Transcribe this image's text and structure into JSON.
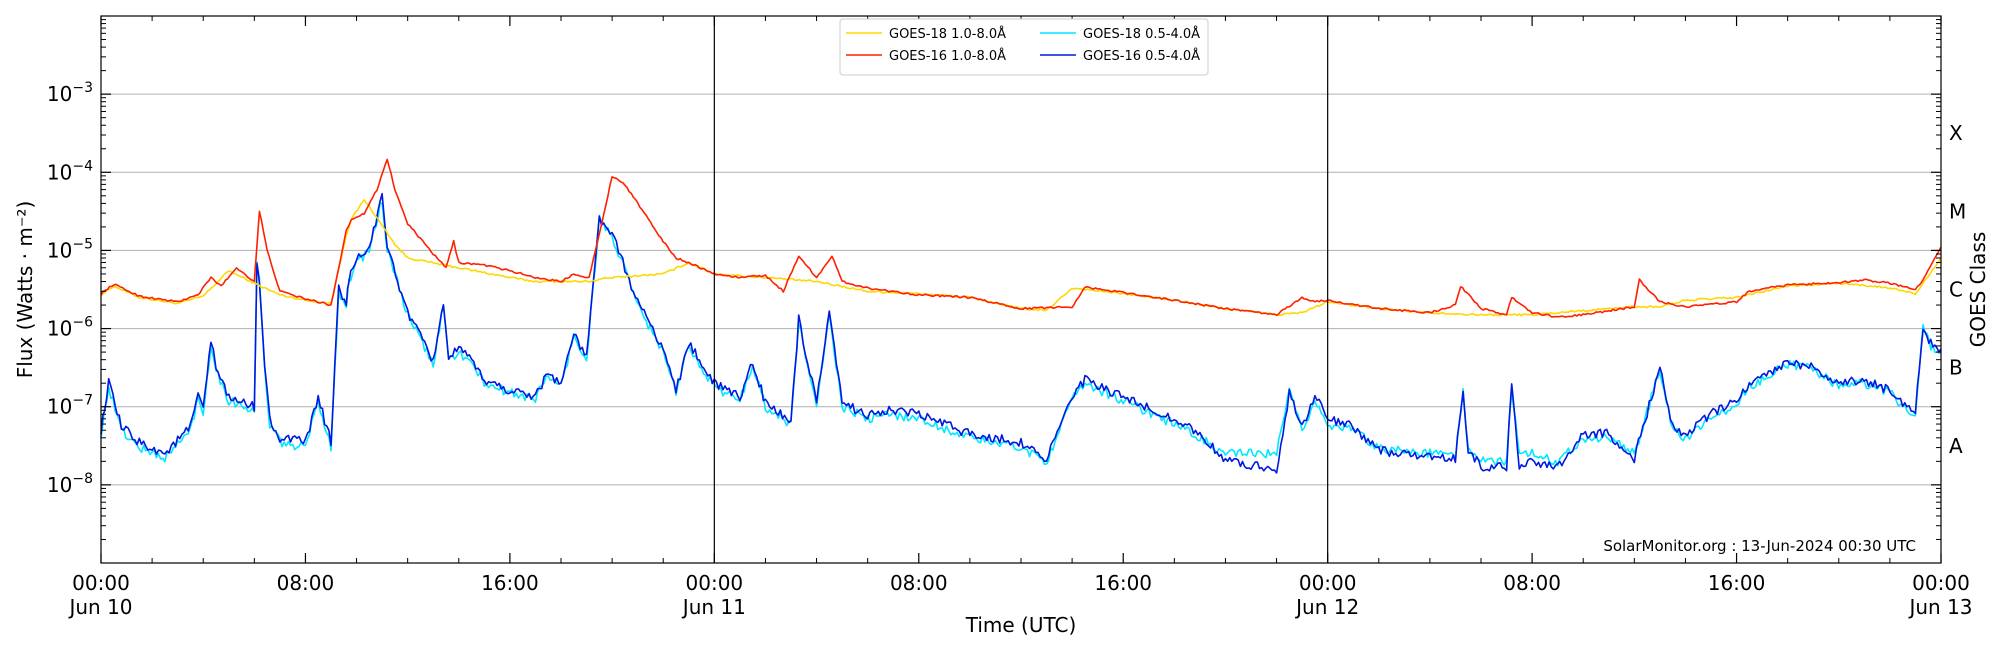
{
  "chart_data": {
    "type": "line",
    "title": "",
    "xlabel": "Time (UTC)",
    "ylabel": "Flux (Watts · m⁻²)",
    "y2label": "GOES Class",
    "yscale": "log",
    "xlim_hours": [
      0,
      72
    ],
    "ylim": [
      1e-09,
      0.01
    ],
    "grid": "horizontal",
    "legend_position": "top-center",
    "credit": "SolarMonitor.org : 13-Jun-2024 00:30 UTC",
    "x_ticks": [
      {
        "hour": 0,
        "line1": "00:00",
        "line2": "Jun 10"
      },
      {
        "hour": 8,
        "line1": "08:00",
        "line2": ""
      },
      {
        "hour": 16,
        "line1": "16:00",
        "line2": ""
      },
      {
        "hour": 24,
        "line1": "00:00",
        "line2": "Jun 11"
      },
      {
        "hour": 32,
        "line1": "08:00",
        "line2": ""
      },
      {
        "hour": 40,
        "line1": "16:00",
        "line2": ""
      },
      {
        "hour": 48,
        "line1": "00:00",
        "line2": "Jun 12"
      },
      {
        "hour": 56,
        "line1": "08:00",
        "line2": ""
      },
      {
        "hour": 64,
        "line1": "16:00",
        "line2": ""
      },
      {
        "hour": 72,
        "line1": "00:00",
        "line2": "Jun 13"
      }
    ],
    "day_separators_hours": [
      24,
      48
    ],
    "y_ticks": [
      {
        "value": 1e-08,
        "base": "10",
        "exp": "−8"
      },
      {
        "value": 1e-07,
        "base": "10",
        "exp": "−7"
      },
      {
        "value": 1e-06,
        "base": "10",
        "exp": "−6"
      },
      {
        "value": 1e-05,
        "base": "10",
        "exp": "−5"
      },
      {
        "value": 0.0001,
        "base": "10",
        "exp": "−4"
      },
      {
        "value": 0.001,
        "base": "10",
        "exp": "−3"
      }
    ],
    "goes_classes": [
      {
        "label": "A",
        "value": 3.16e-08
      },
      {
        "label": "B",
        "value": 3.16e-07
      },
      {
        "label": "C",
        "value": 3.16e-06
      },
      {
        "label": "M",
        "value": 3.16e-05
      },
      {
        "label": "X",
        "value": 0.000316
      }
    ],
    "series": [
      {
        "name": "GOES-18 1.0-8.0Å",
        "color": "#ffd700",
        "x": [
          0,
          0.5,
          1.5,
          3,
          4,
          5,
          6,
          7,
          8,
          9,
          9.6,
          9.8,
          10.3,
          11.5,
          12,
          14,
          16,
          17,
          19,
          20,
          22,
          23,
          24,
          26,
          28,
          30,
          32,
          34,
          36,
          37,
          38,
          40,
          42,
          44,
          46,
          47,
          48,
          50,
          52,
          54,
          56,
          58,
          60,
          61,
          62,
          64,
          66,
          68,
          70,
          71,
          72
        ],
        "y": [
          2.7e-06,
          3.5e-06,
          2.5e-06,
          2.1e-06,
          2.6e-06,
          5.5e-06,
          3.8e-06,
          2.7e-06,
          2.3e-06,
          2.1e-06,
          1.6e-05,
          2.5e-05,
          4.5e-05,
          1.2e-05,
          8e-06,
          6e-06,
          4.5e-06,
          4e-06,
          4e-06,
          4.5e-06,
          5e-06,
          7e-06,
          5e-06,
          4.5e-06,
          4e-06,
          3e-06,
          2.8e-06,
          2.5e-06,
          1.8e-06,
          1.7e-06,
          3.3e-06,
          2.8e-06,
          2.3e-06,
          1.8e-06,
          1.5e-06,
          1.6e-06,
          2.2e-06,
          1.8e-06,
          1.6e-06,
          1.5e-06,
          1.5e-06,
          1.7e-06,
          1.9e-06,
          1.9e-06,
          2.3e-06,
          2.5e-06,
          3.5e-06,
          3.8e-06,
          3.3e-06,
          2.8e-06,
          8e-06
        ]
      },
      {
        "name": "GOES-16 1.0-8.0Å",
        "color": "#ff2000",
        "x": [
          0,
          0.5,
          1.5,
          3,
          3.8,
          4.3,
          4.7,
          5.3,
          6,
          6.2,
          6.5,
          7,
          8,
          9,
          9.6,
          9.8,
          10.3,
          10.8,
          11.2,
          11.5,
          12,
          13,
          13.5,
          13.8,
          14,
          15,
          16,
          17,
          18,
          18.5,
          19.1,
          19.5,
          20,
          20.5,
          21,
          22,
          22.5,
          23,
          24,
          25,
          26,
          26.7,
          27.3,
          28,
          28.6,
          29,
          30,
          32,
          34,
          36,
          38,
          38.5,
          40,
          42,
          44,
          46,
          47,
          47.5,
          48,
          50,
          52,
          53,
          53.2,
          54,
          55,
          55.2,
          56,
          57,
          58,
          60,
          60.2,
          61,
          62,
          64,
          64.5,
          66,
          68,
          69,
          70,
          71,
          71.3,
          72
        ],
        "y": [
          2.8e-06,
          3.7e-06,
          2.6e-06,
          2.2e-06,
          2.7e-06,
          4.5e-06,
          3.5e-06,
          6e-06,
          4e-06,
          3.2e-05,
          1e-05,
          3e-06,
          2.4e-06,
          2e-06,
          1.8e-05,
          2.5e-05,
          3e-05,
          6e-05,
          0.00015,
          6e-05,
          2.2e-05,
          9e-06,
          6e-06,
          1.3e-05,
          7e-06,
          6.5e-06,
          5.5e-06,
          4.5e-06,
          4e-06,
          5e-06,
          4.5e-06,
          1.6e-05,
          9e-05,
          7e-05,
          4e-05,
          1.3e-05,
          8e-06,
          7e-06,
          5e-06,
          4.5e-06,
          4.8e-06,
          3e-06,
          8.5e-06,
          4.5e-06,
          8.5e-06,
          4e-06,
          3.3e-06,
          2.7e-06,
          2.5e-06,
          1.8e-06,
          1.9e-06,
          3.4e-06,
          2.9e-06,
          2.3e-06,
          1.8e-06,
          1.5e-06,
          2.5e-06,
          2.2e-06,
          2.3e-06,
          1.8e-06,
          1.6e-06,
          2e-06,
          3.5e-06,
          1.8e-06,
          1.5e-06,
          2.5e-06,
          1.6e-06,
          1.4e-06,
          1.5e-06,
          1.9e-06,
          4.2e-06,
          2.2e-06,
          1.9e-06,
          2.2e-06,
          3e-06,
          3.6e-06,
          3.9e-06,
          4.2e-06,
          3.8e-06,
          3.2e-06,
          4.2e-06,
          1.1e-05
        ]
      },
      {
        "name": "GOES-18 0.5-4.0Å",
        "color": "#00e8ff",
        "x": [
          0,
          0.3,
          0.8,
          1.5,
          2.5,
          3.5,
          3.8,
          4,
          4.3,
          4.5,
          5,
          6,
          6.1,
          6.2,
          6.4,
          6.6,
          7,
          8,
          8.5,
          9,
          9.3,
          9.6,
          9.7,
          10,
          10.5,
          11,
          11.2,
          12,
          13,
          13.4,
          13.6,
          14,
          14.5,
          15,
          16,
          17,
          17.5,
          18,
          18.5,
          19,
          19.5,
          20,
          21,
          22,
          22.5,
          23,
          24,
          25,
          25.5,
          26,
          27,
          27.3,
          28,
          28.5,
          28.7,
          29,
          30,
          31,
          32,
          34,
          36,
          37,
          38,
          38.5,
          40,
          42,
          43,
          44,
          46,
          46.5,
          47,
          47.5,
          48,
          49,
          50,
          52,
          53,
          53.3,
          53.5,
          54,
          55,
          55.2,
          55.5,
          56,
          57,
          58,
          59,
          60,
          61,
          61.5,
          62,
          63,
          64,
          64.5,
          66,
          67,
          68,
          69,
          70,
          70.5,
          71,
          71.3,
          71.6,
          72
        ],
        "y": [
          4.5e-08,
          1.8e-07,
          5e-08,
          3e-08,
          2.2e-08,
          5e-08,
          1.3e-07,
          8e-08,
          6.5e-07,
          3e-07,
          1.2e-07,
          9e-08,
          6.5e-06,
          4e-06,
          3e-07,
          6e-08,
          3.5e-08,
          3e-08,
          1.2e-07,
          3e-08,
          3e-06,
          2e-06,
          4e-06,
          7e-06,
          1e-05,
          4.5e-05,
          1e-05,
          1.5e-06,
          3.5e-07,
          2e-06,
          4e-07,
          5e-07,
          3.5e-07,
          2e-07,
          1.5e-07,
          1.3e-07,
          2.5e-07,
          1.8e-07,
          8e-07,
          4e-07,
          2.5e-05,
          1.5e-05,
          2e-06,
          5e-07,
          1.5e-07,
          6e-07,
          1.8e-07,
          1.2e-07,
          3.5e-07,
          1e-07,
          6e-08,
          1.2e-06,
          1e-07,
          1.4e-06,
          5e-07,
          1e-07,
          7e-08,
          8e-08,
          7e-08,
          4e-08,
          3e-08,
          2e-08,
          1.2e-07,
          2e-07,
          1.2e-07,
          6e-08,
          4e-08,
          2.5e-08,
          2.5e-08,
          1.5e-07,
          5e-08,
          1.2e-07,
          6e-08,
          5e-08,
          3e-08,
          2.5e-08,
          2.5e-08,
          1.5e-07,
          3e-08,
          2e-08,
          2e-08,
          1.8e-07,
          2.5e-08,
          2.5e-08,
          2e-08,
          4e-08,
          4e-08,
          2.5e-08,
          3e-07,
          5e-08,
          4e-08,
          7e-08,
          1.1e-07,
          1.8e-07,
          3.5e-07,
          3e-07,
          1.8e-07,
          2e-07,
          1.5e-07,
          1e-07,
          8e-08,
          1e-06,
          6e-07,
          5e-07
        ]
      },
      {
        "name": "GOES-16 0.5-4.0Å",
        "color": "#0018e0",
        "x": [
          0,
          0.3,
          0.8,
          1.5,
          2.5,
          3.5,
          3.8,
          4,
          4.3,
          4.5,
          5,
          6,
          6.1,
          6.2,
          6.4,
          6.6,
          7,
          8,
          8.5,
          9,
          9.3,
          9.6,
          9.7,
          10,
          10.5,
          11,
          11.2,
          12,
          13,
          13.4,
          13.6,
          14,
          14.5,
          15,
          16,
          17,
          17.5,
          18,
          18.5,
          19,
          19.5,
          20,
          21,
          22,
          22.5,
          23,
          24,
          25,
          25.5,
          26,
          27,
          27.3,
          28,
          28.5,
          28.7,
          29,
          30,
          31,
          32,
          34,
          36,
          37,
          38,
          38.5,
          40,
          42,
          43,
          44,
          46,
          46.5,
          47,
          47.5,
          48,
          49,
          50,
          52,
          53,
          53.3,
          53.5,
          54,
          55,
          55.2,
          55.5,
          56,
          57,
          58,
          59,
          60,
          61,
          61.5,
          62,
          63,
          64,
          64.5,
          66,
          67,
          68,
          69,
          70,
          70.5,
          71,
          71.3,
          71.6,
          72
        ],
        "y": [
          5e-08,
          2e-07,
          5.5e-08,
          3.5e-08,
          2.5e-08,
          5.5e-08,
          1.4e-07,
          9e-08,
          7e-07,
          3.2e-07,
          1.3e-07,
          1e-07,
          7e-06,
          4.2e-06,
          3.2e-07,
          7e-08,
          4e-08,
          3.5e-08,
          1.3e-07,
          3.5e-08,
          3.2e-06,
          2.2e-06,
          4.2e-06,
          7.5e-06,
          1.1e-05,
          4.8e-05,
          1.1e-05,
          1.6e-06,
          3.8e-07,
          2.2e-06,
          4.2e-07,
          5.5e-07,
          3.8e-07,
          2.2e-07,
          1.6e-07,
          1.4e-07,
          2.7e-07,
          2e-07,
          8.5e-07,
          4.2e-07,
          2.6e-05,
          1.6e-05,
          2.2e-06,
          5.5e-07,
          1.6e-07,
          6.5e-07,
          2e-07,
          1.3e-07,
          3.8e-07,
          1.1e-07,
          6.5e-08,
          1.3e-06,
          1.1e-07,
          1.5e-06,
          5.5e-07,
          1.1e-07,
          8e-08,
          9e-08,
          8e-08,
          4.5e-08,
          3.5e-08,
          2.2e-08,
          1.3e-07,
          2.2e-07,
          1.3e-07,
          7e-08,
          4.5e-08,
          2e-08,
          1.6e-08,
          1.5e-07,
          5.5e-08,
          1.4e-07,
          7e-08,
          5.5e-08,
          2.8e-08,
          2.2e-08,
          2.2e-08,
          1.6e-07,
          2.8e-08,
          1.7e-08,
          1.7e-08,
          1.9e-07,
          1.8e-08,
          2e-08,
          1.7e-08,
          4.5e-08,
          4.5e-08,
          2.2e-08,
          3.2e-07,
          5.5e-08,
          4.5e-08,
          8e-08,
          1.2e-07,
          2e-07,
          3.8e-07,
          3.2e-07,
          2e-07,
          2.2e-07,
          1.6e-07,
          1.1e-07,
          9e-08,
          1.1e-06,
          6.5e-07,
          5.5e-07
        ]
      }
    ]
  }
}
